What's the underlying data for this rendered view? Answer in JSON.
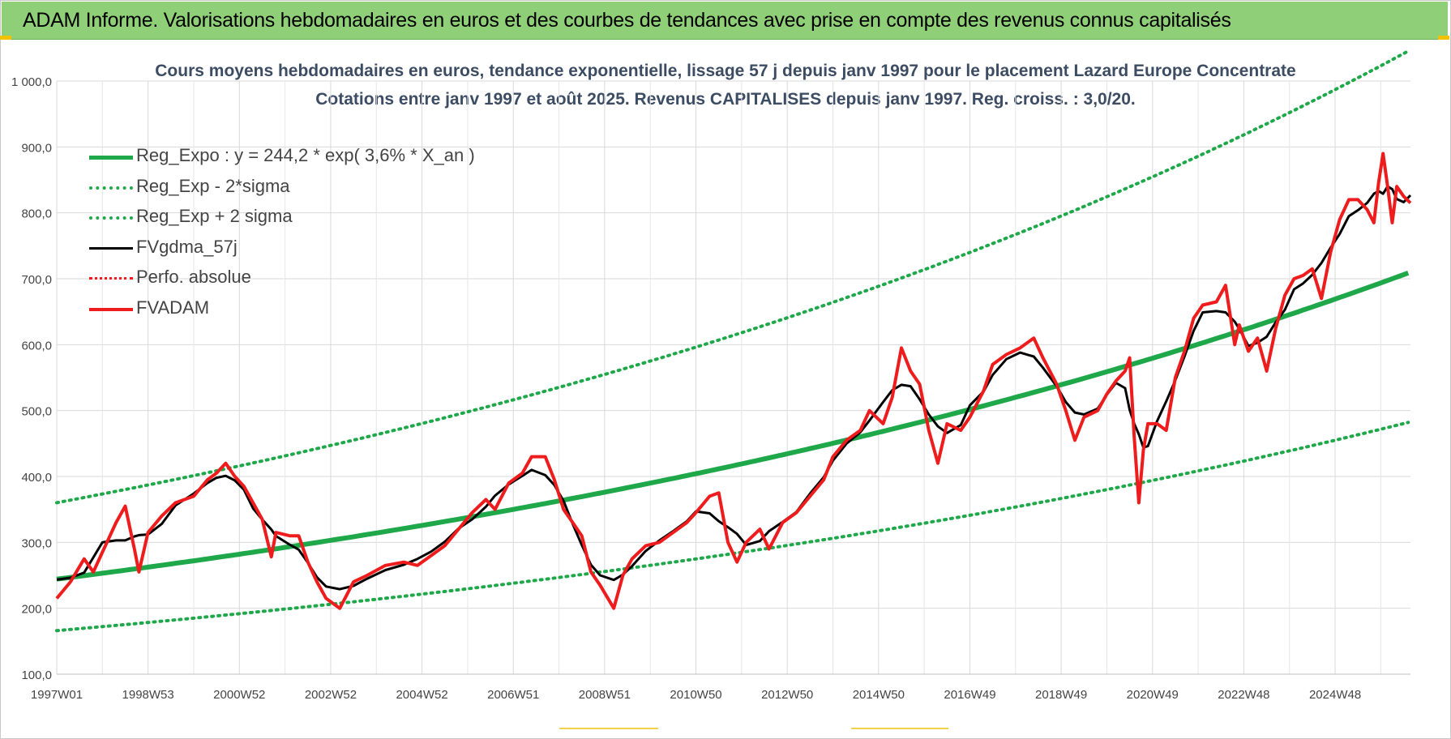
{
  "banner": {
    "title": "ADAM Informe. Valorisations hebdomadaires en euros et des courbes de tendances avec prise en compte des revenus connus capitalisés"
  },
  "chart_data": {
    "type": "line",
    "title": "Cours moyens hebdomadaires en euros, tendance exponentielle, lissage 57 j depuis janv 1997 pour le placement Lazard Europe Concentrate",
    "subtitle": "Cotations entre janv 1997 et août 2025.  Revenus CAPITALISES depuis janv 1997. Reg. croiss. : 3,0/20.",
    "xlabel": "",
    "ylabel": "",
    "ylim": [
      100,
      1000
    ],
    "y_ticks": [
      "100,0",
      "200,0",
      "300,0",
      "400,0",
      "500,0",
      "600,0",
      "700,0",
      "800,0",
      "900,0",
      "1 000,0"
    ],
    "y_tick_values": [
      100,
      200,
      300,
      400,
      500,
      600,
      700,
      800,
      900,
      1000
    ],
    "x_range_years": [
      1997.0,
      2025.65
    ],
    "x_ticks": [
      "1997W01",
      "1998W53",
      "2000W52",
      "2002W52",
      "2004W52",
      "2006W51",
      "2008W51",
      "2010W50",
      "2012W50",
      "2014W50",
      "2016W49",
      "2018W49",
      "2020W49",
      "2022W48",
      "2024W48"
    ],
    "x_tick_years": [
      1997.0,
      1999.0,
      2001.0,
      2003.0,
      2005.0,
      2007.0,
      2009.0,
      2011.0,
      2013.0,
      2015.0,
      2017.0,
      2019.0,
      2021.0,
      2023.0,
      2025.0
    ],
    "grid": true,
    "legend_position": "top-left",
    "regression": {
      "a": 244.2,
      "rate": 0.036,
      "sigma_factor_upper": 1.475,
      "sigma_factor_lower": 0.68
    },
    "series": [
      {
        "name": "Reg_Expo : y = 244,2 * exp( 3,6% *  X_an )",
        "color": "#1ea84a",
        "style": "solid",
        "width": 6
      },
      {
        "name": "Reg_Exp - 2*sigma",
        "color": "#1ea84a",
        "style": "dotted",
        "width": 4
      },
      {
        "name": "Reg_Exp + 2 sigma",
        "color": "#1ea84a",
        "style": "dotted",
        "width": 4
      },
      {
        "name": "FVgdma_57j",
        "color": "#000000",
        "style": "solid",
        "width": 3
      },
      {
        "name": "Perfo. absolue",
        "color": "#ee1c1c",
        "style": "dotted",
        "width": 2
      },
      {
        "name": "FVADAM",
        "color": "#ee1c1c",
        "style": "solid",
        "width": 4
      }
    ],
    "fvadam_points": [
      [
        1997.0,
        215
      ],
      [
        1997.3,
        240
      ],
      [
        1997.6,
        275
      ],
      [
        1997.8,
        255
      ],
      [
        1998.0,
        285
      ],
      [
        1998.3,
        330
      ],
      [
        1998.5,
        355
      ],
      [
        1998.7,
        290
      ],
      [
        1998.8,
        255
      ],
      [
        1999.0,
        315
      ],
      [
        1999.3,
        340
      ],
      [
        1999.6,
        360
      ],
      [
        2000.0,
        370
      ],
      [
        2000.3,
        395
      ],
      [
        2000.5,
        405
      ],
      [
        2000.7,
        420
      ],
      [
        2000.9,
        400
      ],
      [
        2001.1,
        385
      ],
      [
        2001.3,
        360
      ],
      [
        2001.5,
        335
      ],
      [
        2001.7,
        278
      ],
      [
        2001.8,
        315
      ],
      [
        2002.1,
        310
      ],
      [
        2002.3,
        310
      ],
      [
        2002.5,
        270
      ],
      [
        2002.7,
        240
      ],
      [
        2002.9,
        215
      ],
      [
        2003.2,
        200
      ],
      [
        2003.5,
        240
      ],
      [
        2003.8,
        250
      ],
      [
        2004.2,
        265
      ],
      [
        2004.6,
        270
      ],
      [
        2004.9,
        265
      ],
      [
        2005.2,
        280
      ],
      [
        2005.5,
        295
      ],
      [
        2005.8,
        320
      ],
      [
        2006.1,
        345
      ],
      [
        2006.4,
        365
      ],
      [
        2006.6,
        350
      ],
      [
        2006.9,
        390
      ],
      [
        2007.2,
        405
      ],
      [
        2007.4,
        430
      ],
      [
        2007.7,
        430
      ],
      [
        2007.9,
        395
      ],
      [
        2008.1,
        350
      ],
      [
        2008.3,
        330
      ],
      [
        2008.5,
        310
      ],
      [
        2008.7,
        255
      ],
      [
        2008.9,
        235
      ],
      [
        2009.2,
        200
      ],
      [
        2009.4,
        250
      ],
      [
        2009.6,
        275
      ],
      [
        2009.9,
        295
      ],
      [
        2010.2,
        300
      ],
      [
        2010.5,
        315
      ],
      [
        2010.8,
        330
      ],
      [
        2011.0,
        345
      ],
      [
        2011.3,
        370
      ],
      [
        2011.5,
        375
      ],
      [
        2011.7,
        300
      ],
      [
        2011.9,
        270
      ],
      [
        2012.1,
        300
      ],
      [
        2012.4,
        320
      ],
      [
        2012.6,
        290
      ],
      [
        2012.9,
        330
      ],
      [
        2013.2,
        345
      ],
      [
        2013.5,
        370
      ],
      [
        2013.8,
        395
      ],
      [
        2014.0,
        430
      ],
      [
        2014.3,
        455
      ],
      [
        2014.6,
        470
      ],
      [
        2014.8,
        500
      ],
      [
        2015.1,
        480
      ],
      [
        2015.3,
        520
      ],
      [
        2015.5,
        595
      ],
      [
        2015.7,
        560
      ],
      [
        2015.9,
        540
      ],
      [
        2016.1,
        470
      ],
      [
        2016.3,
        420
      ],
      [
        2016.5,
        480
      ],
      [
        2016.8,
        470
      ],
      [
        2017.0,
        490
      ],
      [
        2017.3,
        530
      ],
      [
        2017.5,
        570
      ],
      [
        2017.8,
        585
      ],
      [
        2018.1,
        595
      ],
      [
        2018.4,
        610
      ],
      [
        2018.6,
        580
      ],
      [
        2018.9,
        540
      ],
      [
        2019.1,
        500
      ],
      [
        2019.3,
        455
      ],
      [
        2019.5,
        490
      ],
      [
        2019.8,
        500
      ],
      [
        2020.0,
        525
      ],
      [
        2020.2,
        545
      ],
      [
        2020.4,
        560
      ],
      [
        2020.5,
        580
      ],
      [
        2020.6,
        460
      ],
      [
        2020.7,
        360
      ],
      [
        2020.8,
        440
      ],
      [
        2020.9,
        480
      ],
      [
        2021.1,
        480
      ],
      [
        2021.3,
        470
      ],
      [
        2021.5,
        550
      ],
      [
        2021.7,
        590
      ],
      [
        2021.9,
        640
      ],
      [
        2022.1,
        660
      ],
      [
        2022.4,
        665
      ],
      [
        2022.6,
        690
      ],
      [
        2022.8,
        600
      ],
      [
        2022.9,
        630
      ],
      [
        2023.1,
        590
      ],
      [
        2023.3,
        610
      ],
      [
        2023.5,
        560
      ],
      [
        2023.7,
        625
      ],
      [
        2023.9,
        675
      ],
      [
        2024.1,
        700
      ],
      [
        2024.3,
        705
      ],
      [
        2024.5,
        715
      ],
      [
        2024.7,
        670
      ],
      [
        2024.9,
        740
      ],
      [
        2025.1,
        790
      ],
      [
        2025.3,
        820
      ],
      [
        2025.5,
        820
      ],
      [
        2025.7,
        805
      ],
      [
        2025.85,
        785
      ],
      [
        2025.95,
        845
      ],
      [
        2026.05,
        890
      ],
      [
        2026.15,
        840
      ],
      [
        2026.25,
        785
      ],
      [
        2026.35,
        840
      ],
      [
        2026.5,
        825
      ],
      [
        2026.65,
        815
      ]
    ]
  }
}
